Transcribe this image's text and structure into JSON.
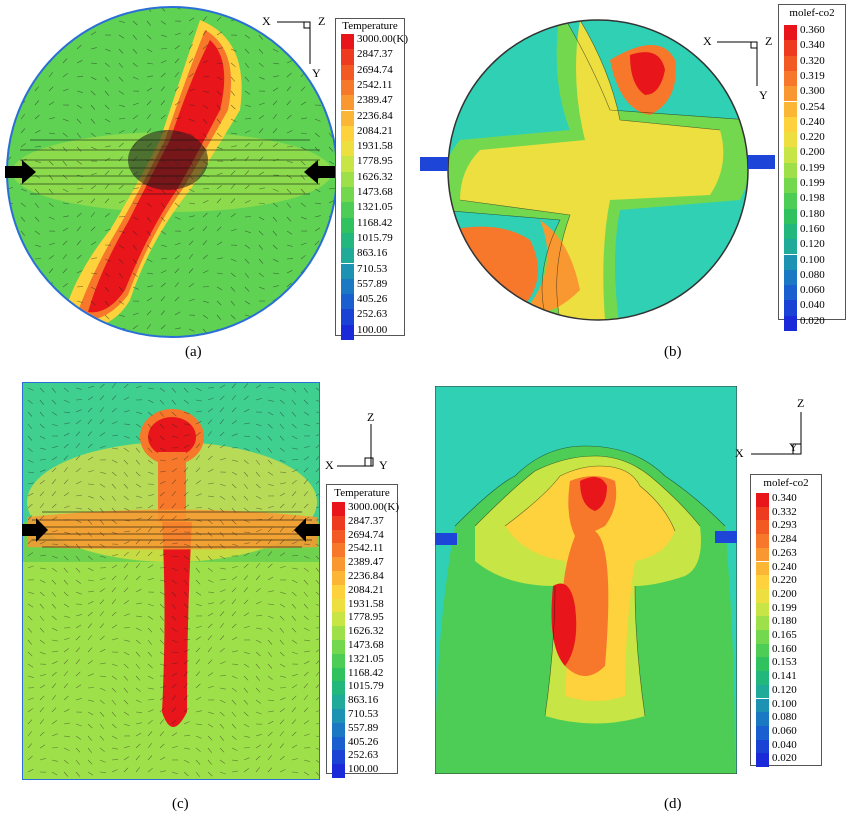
{
  "figure": {
    "captions": [
      "(a)",
      "(b)",
      "(c)",
      "(d)"
    ],
    "axes_a": {
      "x": "X",
      "y": "Y",
      "z": "Z"
    },
    "axes_b": {
      "x": "X",
      "y": "Y",
      "z": "Z"
    },
    "axes_c": {
      "x": "X",
      "y": "Y",
      "z": "Z"
    },
    "axes_d": {
      "x": "X",
      "y": "Y",
      "z": "Z"
    }
  },
  "temperature_legend": {
    "title": "Temperature",
    "levels": [
      "3000.00(K)",
      "2847.37",
      "2694.74",
      "2542.11",
      "2389.47",
      "2236.84",
      "2084.21",
      "1931.58",
      "1778.95",
      "1626.32",
      "1473.68",
      "1321.05",
      "1168.42",
      "1015.79",
      "863.16",
      "710.53",
      "557.89",
      "405.26",
      "252.63",
      "100.00"
    ]
  },
  "co2_legend_b": {
    "title": "molef-co2",
    "levels": [
      "0.360",
      "0.340",
      "0.320",
      "0.319",
      "0.300",
      "0.254",
      "0.240",
      "0.220",
      "0.200",
      "0.199",
      "0.199",
      "0.198",
      "0.180",
      "0.160",
      "0.120",
      "0.100",
      "0.080",
      "0.060",
      "0.040",
      "0.020"
    ]
  },
  "co2_legend_d": {
    "title": "molef-co2",
    "levels": [
      "0.340",
      "0.332",
      "0.293",
      "0.284",
      "0.263",
      "0.240",
      "0.220",
      "0.200",
      "0.199",
      "0.180",
      "0.165",
      "0.160",
      "0.153",
      "0.141",
      "0.120",
      "0.100",
      "0.080",
      "0.060",
      "0.040",
      "0.020"
    ]
  },
  "colors": {
    "scale": [
      "#e8161b",
      "#ee3a1e",
      "#f35a23",
      "#f7782a",
      "#f99830",
      "#fbb636",
      "#fdd23c",
      "#ecdf3f",
      "#c7e544",
      "#9ee04a",
      "#74d84f",
      "#4dcd55",
      "#2fc25f",
      "#22b77d",
      "#1faa9a",
      "#1d92b3",
      "#1b79c4",
      "#1a5fcf",
      "#1a43d6",
      "#1a2ad9"
    ],
    "injector": "#1d45d8",
    "arrow_black": "#000000"
  }
}
